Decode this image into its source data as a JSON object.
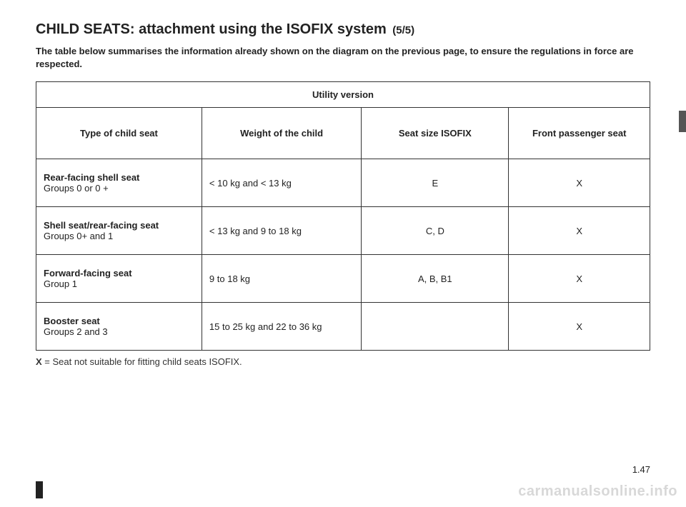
{
  "title": {
    "main": "CHILD SEATS: attachment using the ISOFIX system",
    "suffix": "(5/5)"
  },
  "intro": "The table below summarises the information already shown on the diagram on the previous page, to ensure the regulations in force are respected.",
  "table": {
    "caption": "Utility version",
    "headers": {
      "c1": "Type of child seat",
      "c2": "Weight of the child",
      "c3": "Seat size ISOFIX",
      "c4": "Front passenger seat"
    },
    "rows": [
      {
        "label_bold": "Rear-facing shell seat",
        "label_sub": "Groups 0 or 0 +",
        "weight": "< 10 kg and < 13 kg",
        "size": "E",
        "front": "X"
      },
      {
        "label_bold": "Shell seat/rear-facing seat",
        "label_sub": "Groups 0+ and 1",
        "weight": "< 13 kg and 9 to 18 kg",
        "size": "C, D",
        "front": "X"
      },
      {
        "label_bold": "Forward-facing seat",
        "label_sub": "Group 1",
        "weight": "9 to 18 kg",
        "size": "A, B, B1",
        "front": "X"
      },
      {
        "label_bold": "Booster seat",
        "label_sub": "Groups 2 and 3",
        "weight": "15 to 25 kg and 22 to 36 kg",
        "size": "",
        "front": "X"
      }
    ]
  },
  "legend": {
    "key": "X",
    "text": " = Seat not suitable for fitting child seats ISOFIX."
  },
  "page_number": "1.47",
  "watermark": "carmanualsonline.info",
  "colors": {
    "text": "#222222",
    "border": "#333333",
    "watermark": "#d8d8d8",
    "background": "#ffffff"
  }
}
